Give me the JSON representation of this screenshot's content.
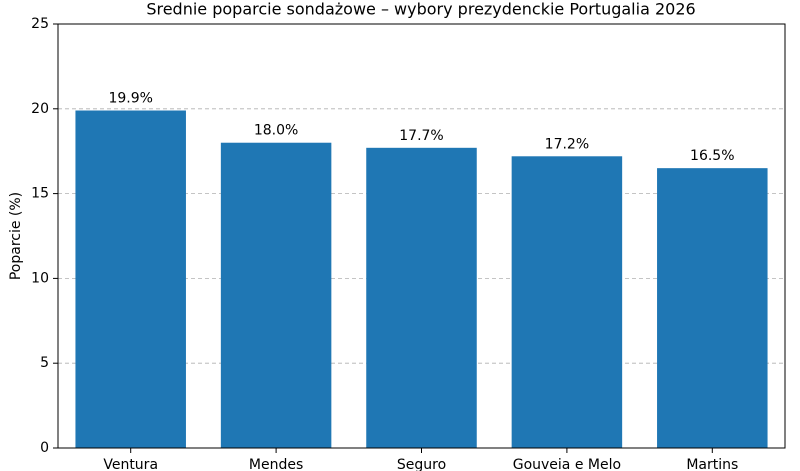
{
  "chart_data": {
    "type": "bar",
    "title": "Srednie poparcie sondażowe – wybory prezydenckie Portugalia 2026",
    "y_label": "Poparcie (%)",
    "categories": [
      "Ventura",
      "Mendes",
      "Seguro",
      "Gouveia e Melo",
      "Martins"
    ],
    "values": [
      19.9,
      18.0,
      17.7,
      17.2,
      16.5
    ],
    "value_labels": [
      "19.9%",
      "18.0%",
      "17.7%",
      "17.2%",
      "16.5%"
    ],
    "color": "#1f77b4",
    "ylim": [
      0,
      25
    ],
    "yticks": [
      0,
      5,
      10,
      15,
      20,
      25
    ],
    "grid": true
  }
}
